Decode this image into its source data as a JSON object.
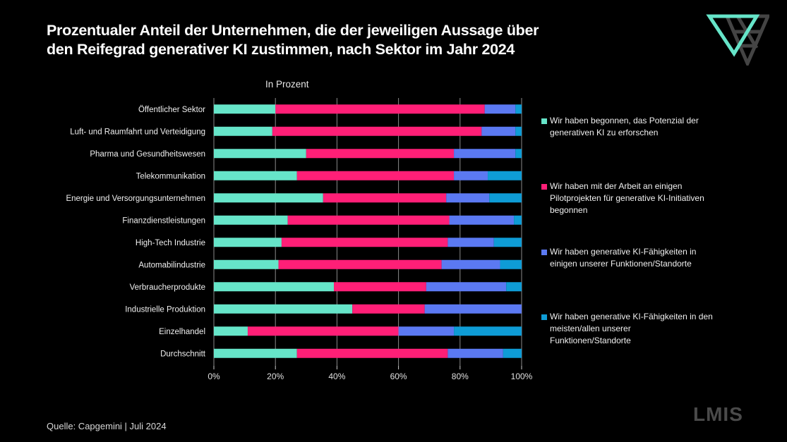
{
  "title_line1": "Prozentualer Anteil der Unternehmen, die der jeweiligen Aussage über",
  "title_line2": "den Reifegrad generativer KI zustimmen, nach Sektor im Jahr 2024",
  "subtitle": "In Prozent",
  "source": "Quelle: Capgemini | Juli 2024",
  "brand": "LMIS",
  "logo_icon": "triangle-logo-icon",
  "colors": {
    "background": "#000000",
    "teal": "#66E5C9",
    "pink": "#FF1F77",
    "blue": "#5B79F2",
    "cyan": "#0E9CD6",
    "grid": "#8a8a8a"
  },
  "chart_data": {
    "type": "bar",
    "orientation": "horizontal",
    "stacked": "percent",
    "title": "Prozentualer Anteil der Unternehmen, die der jeweiligen Aussage über den Reifegrad generativer KI zustimmen, nach Sektor im Jahr 2024",
    "subtitle": "In Prozent",
    "xlabel": "",
    "ylabel": "",
    "xlim": [
      0,
      100
    ],
    "x_ticks": [
      "0%",
      "20%",
      "40%",
      "60%",
      "80%",
      "100%"
    ],
    "grid": true,
    "legend_position": "right",
    "categories": [
      "Öffentlicher Sektor",
      "Luft- und Raumfahrt und Verteidigung",
      "Pharma und Gesundheitswesen",
      "Telekommunikation",
      "Energie und Versorgungsunternehmen",
      "Finanzdienstleistungen",
      "High-Tech Industrie",
      "Automabilindustrie",
      "Verbraucherprodukte",
      "Industrielle Produktion",
      "Einzelhandel",
      "Durchschnitt"
    ],
    "series": [
      {
        "name": "Wir haben begonnen, das Potenzial der generativen KI zu erforschen",
        "color": "#66E5C9",
        "values": [
          20,
          19,
          30,
          27,
          35.5,
          24,
          22,
          21,
          39,
          45,
          11,
          27
        ]
      },
      {
        "name": "Wir haben mit der Arbeit an einigen Pilotprojekten für generative KI-Initiativen begonnen",
        "color": "#FF1F77",
        "values": [
          68,
          68,
          48,
          51,
          40,
          52.5,
          54,
          53,
          30,
          23.5,
          49,
          49
        ]
      },
      {
        "name": "Wir haben generative KI-Fähigkeiten in einigen unserer Funktionen/Standorte",
        "color": "#5B79F2",
        "values": [
          10,
          11,
          20,
          11,
          14,
          21,
          15,
          19,
          26,
          31.5,
          18,
          18
        ]
      },
      {
        "name": "Wir haben generative KI-Fähigkeiten in den meisten/allen unserer Funktionen/Standorte",
        "color": "#0E9CD6",
        "values": [
          2,
          2,
          2,
          11,
          10.5,
          2.5,
          9,
          7,
          5,
          0,
          22,
          6
        ]
      }
    ]
  },
  "legend": [
    {
      "lines": [
        "Wir haben begonnen, das Potenzial der",
        "generativen KI zu erforschen"
      ]
    },
    {
      "lines": [
        "Wir haben mit der Arbeit an einigen",
        "Pilotprojekten für generative KI-Initiativen",
        "begonnen"
      ]
    },
    {
      "lines": [
        "Wir haben generative KI-Fähigkeiten in",
        "einigen unserer Funktionen/Standorte"
      ]
    },
    {
      "lines": [
        "Wir haben generative KI-Fähigkeiten in den",
        "meisten/allen unserer",
        "Funktionen/Standorte"
      ]
    }
  ]
}
